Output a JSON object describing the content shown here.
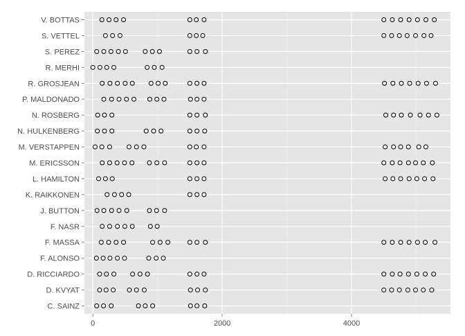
{
  "chart_data": {
    "type": "scatter",
    "title": "",
    "xlabel": "",
    "ylabel": "",
    "xlim": [
      -130,
      5530
    ],
    "x_ticks": [
      0,
      2000,
      4000
    ],
    "x_tick_labels": [
      "0",
      "2000",
      "4000"
    ],
    "grid": true,
    "legend": "none",
    "colors": {
      "panel": "#e5e5e5",
      "grid": "#ffffff",
      "point_stroke": "#000000",
      "text": "#4d4d4d"
    },
    "categories": [
      "V. BOTTAS",
      "S. VETTEL",
      "S. PEREZ",
      "R. MERHI",
      "R. GROSJEAN",
      "P. MALDONADO",
      "N. ROSBERG",
      "N. HULKENBERG",
      "M. VERSTAPPEN",
      "M. ERICSSON",
      "L. HAMILTON",
      "K. RAIKKONEN",
      "J. BUTTON",
      "F. NASR",
      "F. MASSA",
      "F. ALONSO",
      "D. RICCIARDO",
      "D. KVYAT",
      "C. SAINZ"
    ],
    "points": [
      [
        140,
        250,
        360,
        475,
        1500,
        1600,
        1720,
        4500,
        4630,
        4760,
        4890,
        5020,
        5150,
        5280
      ],
      [
        195,
        305,
        420,
        1500,
        1600,
        1700,
        4500,
        4620,
        4740,
        4860,
        4990,
        5120,
        5230
      ],
      [
        60,
        170,
        280,
        395,
        505,
        810,
        920,
        1030,
        1500,
        1610,
        1740
      ],
      [
        0,
        110,
        215,
        325,
        840,
        950,
        1070
      ],
      [
        145,
        265,
        380,
        500,
        610,
        900,
        1010,
        1120,
        1500,
        1610,
        1720,
        4510,
        4640,
        4770,
        4900,
        5030,
        5160,
        5300
      ],
      [
        170,
        290,
        405,
        520,
        635,
        880,
        990,
        1100,
        1510,
        1610,
        1720
      ],
      [
        75,
        180,
        295,
        1500,
        1610,
        1740,
        4530,
        4650,
        4770,
        4910,
        5060,
        5190,
        5320
      ],
      [
        70,
        180,
        295,
        825,
        940,
        1055,
        1500,
        1610,
        1730
      ],
      [
        35,
        140,
        260,
        560,
        675,
        790,
        1500,
        1600,
        1720,
        4520,
        4650,
        4760,
        4880,
        5040,
        5150
      ],
      [
        145,
        260,
        375,
        490,
        605,
        875,
        990,
        1110,
        1500,
        1610,
        1720,
        4500,
        4630,
        4750,
        4880,
        4990,
        5110,
        5250
      ],
      [
        90,
        195,
        300,
        1500,
        1610,
        1720,
        4520,
        4640,
        4760,
        4890,
        5010,
        5130,
        5260
      ],
      [
        220,
        335,
        445,
        555,
        1500,
        1610,
        1720
      ],
      [
        65,
        170,
        290,
        405,
        525,
        875,
        985,
        1110
      ],
      [
        145,
        260,
        380,
        495,
        610,
        890,
        995
      ],
      [
        130,
        245,
        360,
        475,
        925,
        1040,
        1160,
        1500,
        1610,
        1740,
        4500,
        4630,
        4760,
        4890,
        5020,
        5140,
        5290
      ],
      [
        55,
        160,
        265,
        380,
        490,
        865,
        980,
        1090
      ],
      [
        105,
        210,
        325,
        615,
        730,
        845,
        1500,
        1610,
        1720,
        4500,
        4630,
        4750,
        4880,
        5010,
        5140,
        5270
      ],
      [
        105,
        205,
        315,
        565,
        675,
        795,
        1510,
        1620,
        1740,
        4500,
        4620,
        4740,
        4870,
        4990,
        5110,
        5240
      ],
      [
        60,
        165,
        285,
        705,
        810,
        925,
        1510,
        1610,
        1730
      ]
    ]
  }
}
